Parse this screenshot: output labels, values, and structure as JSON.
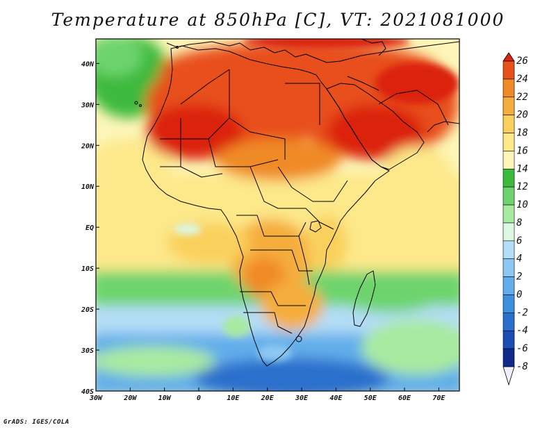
{
  "title": "Temperature at 850hPa [C], VT: 2021081000",
  "credit": "GrADS: IGES/COLA",
  "map": {
    "lon_range": [
      -30,
      76
    ],
    "lat_range": [
      -40,
      46
    ],
    "x_ticks": [
      {
        "lon": -30,
        "label": "30W"
      },
      {
        "lon": -20,
        "label": "20W"
      },
      {
        "lon": -10,
        "label": "10W"
      },
      {
        "lon": 0,
        "label": "0"
      },
      {
        "lon": 10,
        "label": "10E"
      },
      {
        "lon": 20,
        "label": "20E"
      },
      {
        "lon": 30,
        "label": "30E"
      },
      {
        "lon": 40,
        "label": "40E"
      },
      {
        "lon": 50,
        "label": "50E"
      },
      {
        "lon": 60,
        "label": "60E"
      },
      {
        "lon": 70,
        "label": "70E"
      }
    ],
    "y_ticks": [
      {
        "lat": 40,
        "label": "40N"
      },
      {
        "lat": 30,
        "label": "30N"
      },
      {
        "lat": 20,
        "label": "20N"
      },
      {
        "lat": 10,
        "label": "10N"
      },
      {
        "lat": 0,
        "label": "EQ"
      },
      {
        "lat": -10,
        "label": "10S"
      },
      {
        "lat": -20,
        "label": "20S"
      },
      {
        "lat": -30,
        "label": "30S"
      },
      {
        "lat": -40,
        "label": "40S"
      }
    ]
  },
  "colorbar": {
    "labels": [
      "26",
      "24",
      "22",
      "20",
      "18",
      "16",
      "14",
      "12",
      "10",
      "8",
      "6",
      "4",
      "2",
      "0",
      "-2",
      "-4",
      "-6",
      "-8"
    ],
    "colors": [
      "#db2410",
      "#e8501a",
      "#f08a26",
      "#f5ad3d",
      "#fad05c",
      "#fde88a",
      "#fdf6b8",
      "#3cba3c",
      "#6dd46d",
      "#a8eaa0",
      "#dcf7e2",
      "#b4ddf7",
      "#8cc8f2",
      "#62aeea",
      "#3e8fdc",
      "#2a6fcc",
      "#1b4eb4",
      "#0f2a8a",
      "#eeeefc"
    ]
  }
}
